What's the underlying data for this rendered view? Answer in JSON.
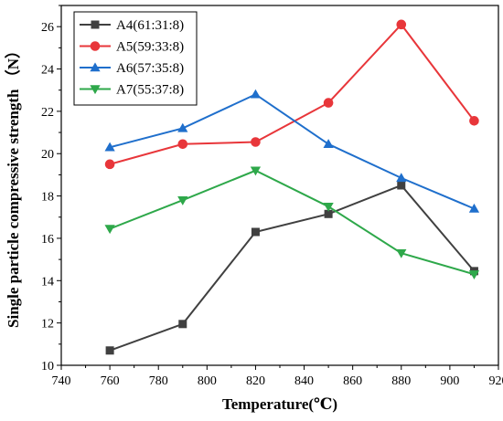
{
  "chart_data": {
    "type": "line",
    "title": "",
    "xlabel": "Temperature(℃)",
    "ylabel": "Single particle compressive strength （N）",
    "xlim": [
      740,
      920
    ],
    "ylim": [
      10,
      27
    ],
    "xticks": [
      740,
      760,
      780,
      800,
      820,
      840,
      860,
      880,
      900,
      920
    ],
    "yticks": [
      10,
      12,
      14,
      16,
      18,
      20,
      22,
      24,
      26
    ],
    "x": [
      760,
      790,
      820,
      850,
      880,
      910
    ],
    "grid": false,
    "legend_position": "top-left",
    "series": [
      {
        "name": "A4(61:31:8)",
        "values": [
          10.7,
          11.95,
          16.3,
          17.15,
          18.5,
          14.45
        ],
        "color": "#404040",
        "marker": "square"
      },
      {
        "name": "A5(59:33:8)",
        "values": [
          19.5,
          20.45,
          20.55,
          22.4,
          26.1,
          21.55
        ],
        "color": "#e8363a",
        "marker": "circle"
      },
      {
        "name": "A6(57:35:8)",
        "values": [
          20.3,
          21.2,
          22.8,
          20.45,
          18.85,
          17.4
        ],
        "color": "#1f6fcc",
        "marker": "triangle-up"
      },
      {
        "name": "A7(55:37:8)",
        "values": [
          16.45,
          17.8,
          19.2,
          17.5,
          15.3,
          14.3
        ],
        "color": "#2ea84a",
        "marker": "triangle-down"
      }
    ]
  }
}
